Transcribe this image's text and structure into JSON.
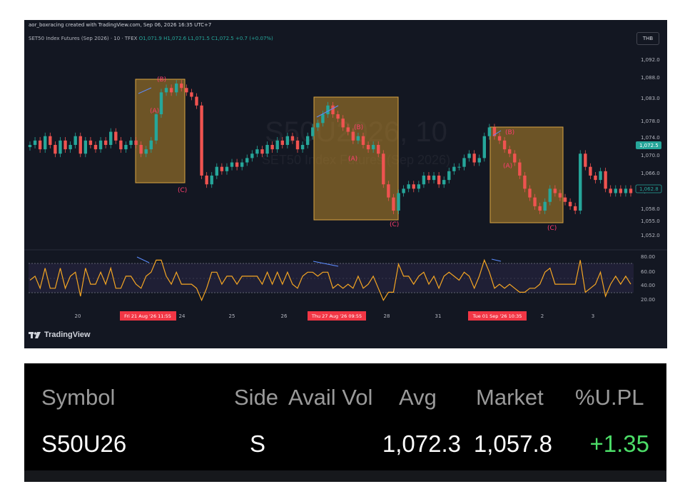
{
  "chart": {
    "credit": "aor_boxracing created with TradingView.com, Sep 06, 2026 16:35 UTC+7",
    "symbol_line": "SET50 Index Futures (Sep 2026) · 10 · TFEX",
    "ohlc": "O1,071.9  H1,072.6  L1,071.5  C1,072.5  +0.7 (+0.07%)",
    "currency": "THB",
    "watermark_symbol": "S50U2026, 10",
    "watermark_name": "SET50 Index Futures (Sep 2026)",
    "brand": "TradingView",
    "colors": {
      "background": "#131722",
      "up": "#26a69a",
      "down": "#ef5350",
      "wave_box": "#b8862a",
      "wave_label": "#ff3d6e",
      "rsi_line": "#f5a623",
      "rsi_band": "#7e57c2",
      "trendline": "#5b8cff",
      "time_highlight": "#f23645"
    },
    "price_axis": [
      "1,092.0",
      "1,088.0",
      "1,083.0",
      "1,078.0",
      "1,074.0",
      "1,070.0",
      "1,066.0",
      "1,062.0",
      "1,058.0",
      "1,055.0",
      "1,052.0"
    ],
    "last_price": "1,072.5",
    "second_price": "1,062.8",
    "rsi_axis": [
      "80.00",
      "60.00",
      "40.00",
      "20.00"
    ],
    "time_axis": [
      "20",
      "24",
      "25",
      "26",
      "28",
      "31",
      "2",
      "3"
    ],
    "time_highlights": [
      "Fri 21 Aug '26   11:55",
      "Thu 27 Aug '26   09:55",
      "Tue 01 Sep '26   10:35"
    ],
    "waves": [
      {
        "labels": [
          "(B)",
          "(A)",
          "(C)"
        ]
      },
      {
        "labels": [
          "(B)",
          "(A)",
          "(C)"
        ]
      },
      {
        "labels": [
          "(B)",
          "(A)",
          "(C)"
        ]
      }
    ],
    "chart_data": {
      "type": "line",
      "title": "",
      "xlabel": "",
      "ylabel": "",
      "ylim": [
        1051,
        1095
      ],
      "y": [
        1073,
        1074,
        1072,
        1075,
        1073,
        1071,
        1074,
        1072,
        1073,
        1075,
        1071,
        1074,
        1073,
        1072,
        1074,
        1073,
        1076,
        1074,
        1072,
        1073,
        1074,
        1073,
        1071,
        1072,
        1074,
        1080,
        1085,
        1086,
        1085,
        1087,
        1086,
        1085,
        1084,
        1082,
        1066,
        1064,
        1066,
        1068,
        1067,
        1068,
        1069,
        1068,
        1069,
        1070,
        1071,
        1072,
        1071,
        1073,
        1072,
        1074,
        1073,
        1075,
        1074,
        1072,
        1073,
        1075,
        1077,
        1078,
        1080,
        1082,
        1080,
        1079,
        1077,
        1076,
        1074,
        1075,
        1073,
        1072,
        1073,
        1071,
        1064,
        1061,
        1058,
        1062,
        1063,
        1064,
        1063,
        1064,
        1066,
        1065,
        1066,
        1064,
        1065,
        1067,
        1068,
        1068,
        1070,
        1071,
        1069,
        1070,
        1075,
        1077,
        1075,
        1074,
        1072,
        1071,
        1069,
        1066,
        1063,
        1061,
        1059,
        1058,
        1060,
        1063,
        1062,
        1061,
        1060,
        1059,
        1058,
        1071,
        1068,
        1066,
        1065,
        1067,
        1063,
        1062,
        1063,
        1062,
        1063,
        1062
      ]
    }
  },
  "positions": {
    "headers": {
      "symbol": "Symbol",
      "side": "Side",
      "avail_vol": "Avail Vol",
      "avg": "Avg",
      "market": "Market",
      "upl": "%U.PL"
    },
    "row": {
      "symbol": "S50U26",
      "side": "S",
      "avail_vol": "",
      "avg": "1,072.3",
      "market": "1,057.8",
      "upl": "+1.35"
    },
    "colors": {
      "header": "#9a9a9a",
      "value": "#ffffff",
      "positive": "#4cdd68"
    }
  }
}
